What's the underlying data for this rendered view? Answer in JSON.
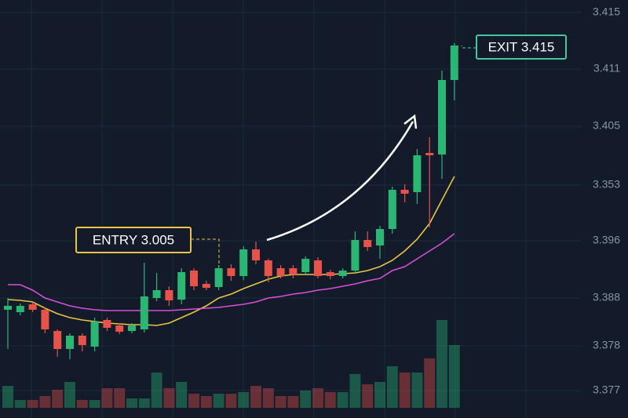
{
  "chart_data": {
    "type": "candlestick",
    "open": [
      125,
      122,
      132,
      125,
      98,
      75,
      92,
      78,
      112,
      105,
      98,
      100,
      140,
      150,
      138,
      175,
      158,
      154,
      178,
      168,
      202,
      188,
      178,
      178,
      173,
      188,
      173,
      168,
      175,
      214,
      207,
      228,
      278,
      275,
      325,
      323,
      418
    ],
    "high": [
      140,
      133,
      135,
      128,
      100,
      95,
      95,
      115,
      115,
      108,
      108,
      185,
      172,
      155,
      178,
      178,
      162,
      182,
      183,
      206,
      212,
      190,
      182,
      182,
      193,
      192,
      176,
      178,
      225,
      225,
      232,
      282,
      285,
      330,
      345,
      430,
      465
    ],
    "low": [
      75,
      118,
      122,
      95,
      65,
      62,
      72,
      72,
      98,
      94,
      95,
      96,
      136,
      130,
      132,
      150,
      150,
      150,
      162,
      163,
      183,
      160,
      165,
      165,
      170,
      165,
      164,
      165,
      172,
      200,
      190,
      222,
      262,
      260,
      230,
      292,
      392
    ],
    "close": [
      130,
      130,
      125,
      100,
      75,
      92,
      80,
      110,
      102,
      97,
      105,
      142,
      150,
      137,
      173,
      155,
      153,
      178,
      168,
      202,
      188,
      168,
      168,
      170,
      190,
      168,
      168,
      175,
      214,
      205,
      228,
      278,
      273,
      322,
      322,
      418,
      462
    ],
    "volume": [
      28,
      10,
      10,
      15,
      23,
      33,
      10,
      10,
      25,
      25,
      12,
      12,
      45,
      25,
      33,
      18,
      15,
      18,
      18,
      20,
      28,
      25,
      15,
      15,
      22,
      25,
      20,
      20,
      43,
      30,
      33,
      53,
      45,
      45,
      63,
      112,
      80
    ],
    "up_color": "#2bb673",
    "down_color": "#e5534b",
    "moving_averages": [
      {
        "color": "#e8c547",
        "values": [
          138,
          137,
          135,
          127,
          120,
          115,
          112,
          110,
          108,
          107,
          106,
          106,
          105,
          108,
          115,
          122,
          130,
          140,
          145,
          152,
          158,
          164,
          168,
          170,
          170,
          170,
          170,
          171,
          172,
          175,
          180,
          188,
          200,
          215,
          235,
          265,
          295
        ]
      },
      {
        "color": "#d94fd6",
        "values": [
          157,
          157,
          150,
          140,
          135,
          130,
          127,
          125,
          124,
          124,
          124,
          124,
          124,
          124,
          125,
          126,
          127,
          128,
          130,
          132,
          135,
          140,
          142,
          145,
          147,
          150,
          152,
          155,
          158,
          162,
          165,
          175,
          180,
          190,
          200,
          210,
          222
        ]
      }
    ],
    "ylim": [
      0,
      520
    ],
    "price_labels": [
      "3.415",
      "3.411",
      "3.405",
      "3.353",
      "3.396",
      "3.388",
      "3.378",
      "3.377"
    ],
    "entry_label": "ENTRY 3.005",
    "exit_label": "EXIT 3.415"
  }
}
